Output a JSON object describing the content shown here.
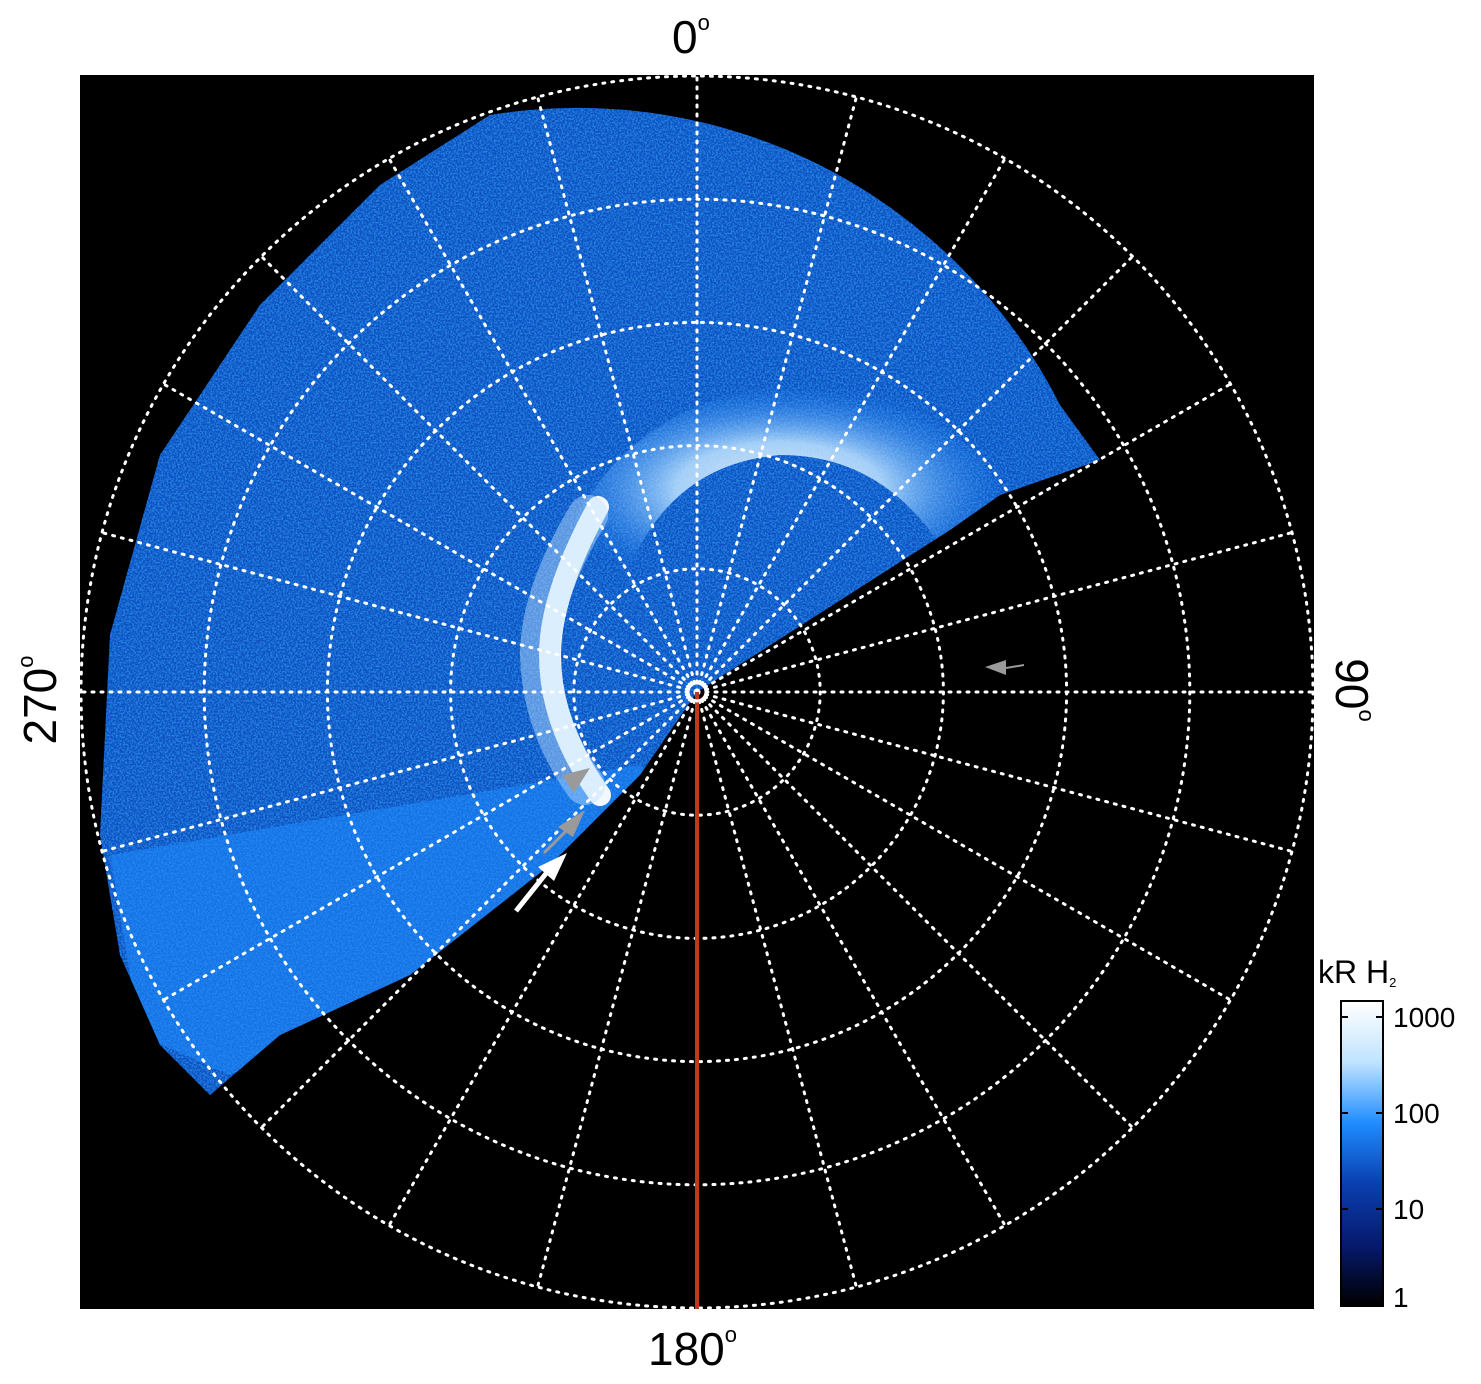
{
  "figure": {
    "labels": {
      "top": "0",
      "bottom": "180",
      "left": "270",
      "right": "90",
      "degree_symbol": "o"
    },
    "colorbar": {
      "title_main": "kR H",
      "title_sub": "2",
      "ticks": [
        "1000",
        "100",
        "10",
        "1"
      ],
      "colors": [
        "#ffffff",
        "#bfe3ff",
        "#1f8cff",
        "#0a3fb0",
        "#061a6e",
        "#000000"
      ]
    },
    "colors": {
      "background": "#000000",
      "grid": "#ffffff",
      "emission": "#1a6fe6",
      "meridian_line": "#c0391b",
      "arrow_gray": "#9a9a9a",
      "arrow_white": "#ffffff"
    }
  }
}
